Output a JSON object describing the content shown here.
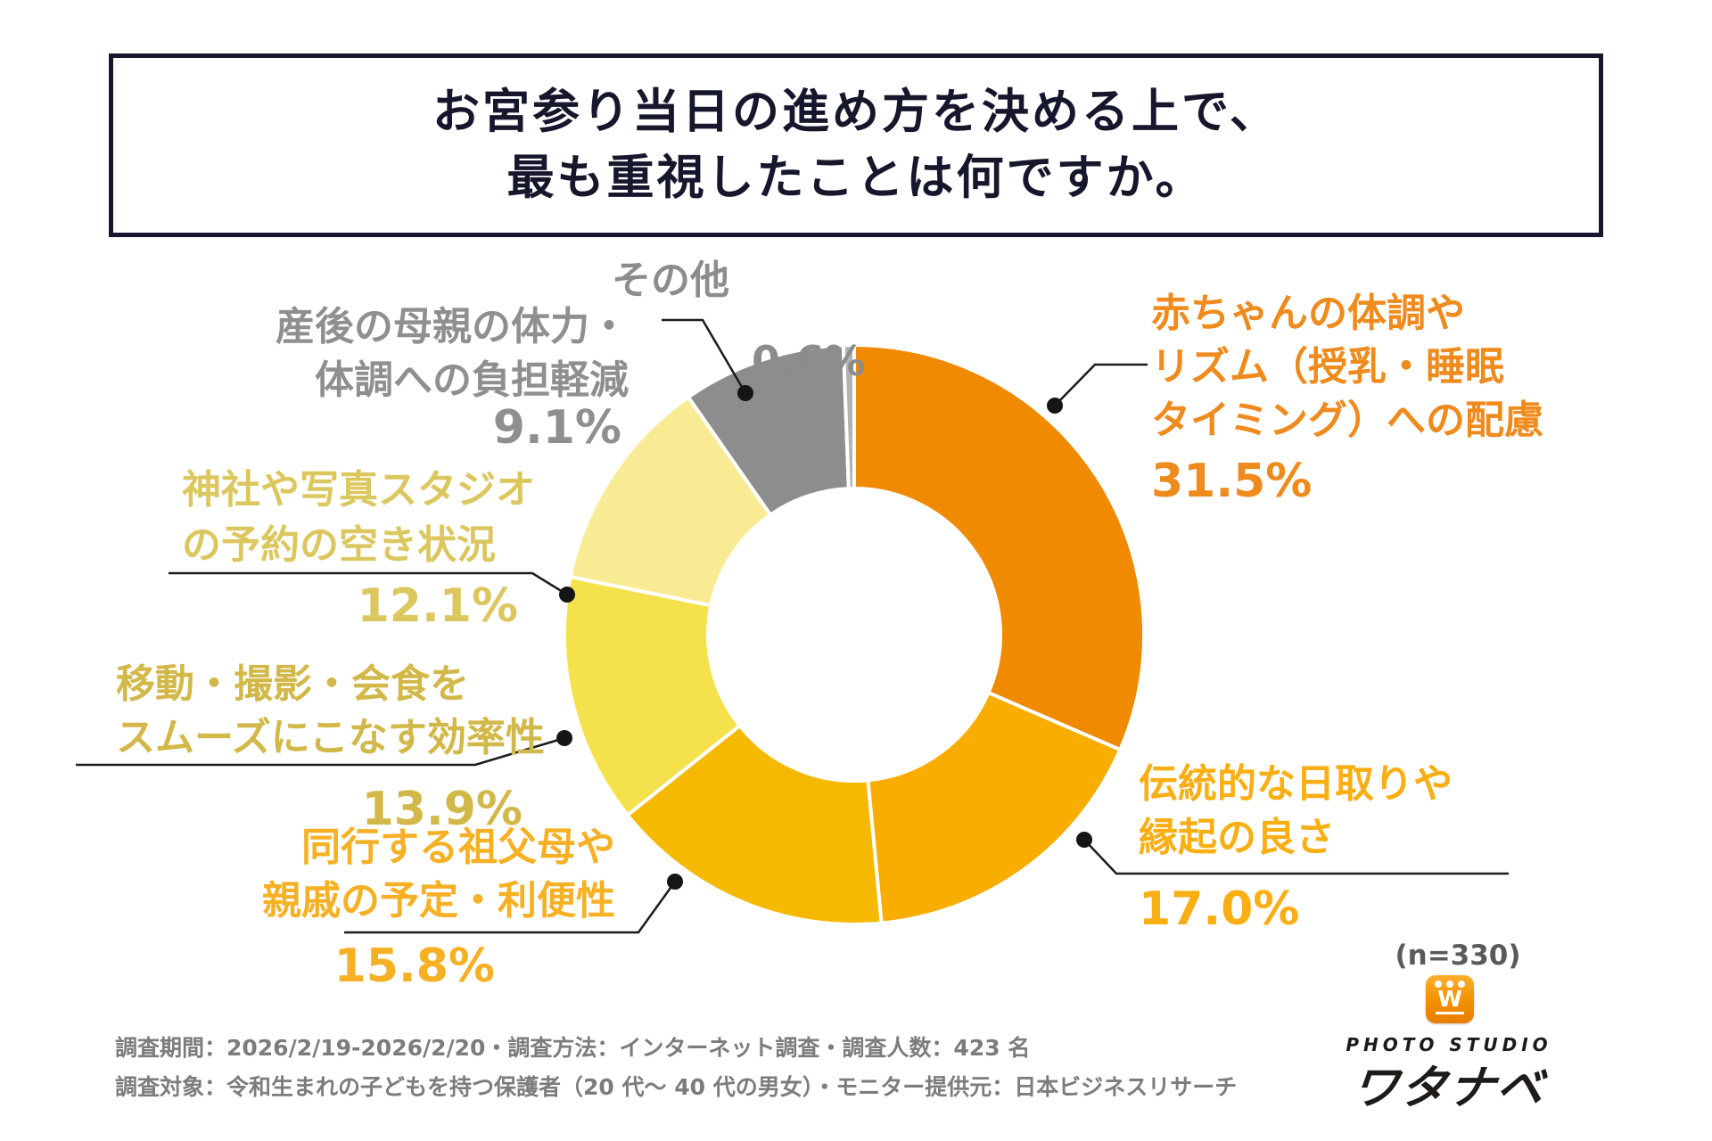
{
  "title": {
    "line1": "お宮参り当日の進め方を決める上で、",
    "line2": "最も重視したことは何ですか。"
  },
  "sample_note": "(n=330)",
  "footer": {
    "line1": "調査期間：2026/2/19-2026/2/20・調査方法：インターネット調査・調査人数：423 名",
    "line2": "調査対象：令和生まれの子どもを持つ保護者（20 代〜 40 代の男女）・モニター提供元：日本ビジネスリサーチ"
  },
  "logo": {
    "icon_letter": "W",
    "studio": "PHOTO STUDIO",
    "name": "ワタナベ"
  },
  "chart_data": {
    "type": "pie",
    "subtype": "donut",
    "title": "お宮参り当日の進め方を決める上で、最も重視したことは何ですか。",
    "n_label": "(n=330)",
    "start_angle_deg": 0,
    "direction": "clockwise",
    "inner_radius_ratio": 0.505,
    "gap_stroke_color": "#ffffff",
    "segments": [
      {
        "label": "赤ちゃんの体調やリズム（授乳・睡眠タイミング）への配慮",
        "value": 31.5,
        "pct_text": "31.5%",
        "color": "#f08a00",
        "text_color": "#ef8a1c",
        "label_lines": [
          "赤ちゃんの体調や",
          "リズム（授乳・睡眠",
          "タイミング）への配慮"
        ]
      },
      {
        "label": "伝統的な日取りや縁起の良さ",
        "value": 17.0,
        "pct_text": "17.0%",
        "color": "#f8ad00",
        "text_color": "#f9ae13",
        "label_lines": [
          "伝統的な日取りや",
          "縁起の良さ"
        ]
      },
      {
        "label": "同行する祖父母や親戚の予定・利便性",
        "value": 15.8,
        "pct_text": "15.8%",
        "color": "#f4b900",
        "text_color": "#f6b024",
        "label_lines": [
          "同行する祖父母や",
          "親戚の予定・利便性"
        ]
      },
      {
        "label": "移動・撮影・会食をスムーズにこなす効率性",
        "value": 13.9,
        "pct_text": "13.9%",
        "color": "#f5e14c",
        "text_color": "#d2b848",
        "label_lines": [
          "移動・撮影・会食を",
          "スムーズにこなす効率性"
        ]
      },
      {
        "label": "神社や写真スタジオの予約の空き状況",
        "value": 12.1,
        "pct_text": "12.1%",
        "color": "#f9eb94",
        "text_color": "#dcc75f",
        "label_lines": [
          "神社や写真スタジオ",
          "の予約の空き状況"
        ]
      },
      {
        "label": "産後の母親の体力・体調への負担軽減",
        "value": 9.1,
        "pct_text": "9.1%",
        "color": "#8d8d8d",
        "text_color": "#8f8f8f",
        "label_lines": [
          "産後の母親の体力・",
          "体調への負担軽減"
        ]
      },
      {
        "label": "その他",
        "value": 0.6,
        "pct_text": "0.6%",
        "color": "#b3b3b3",
        "text_color": "#8c8c8c",
        "label_lines": [
          "その他"
        ]
      }
    ]
  }
}
